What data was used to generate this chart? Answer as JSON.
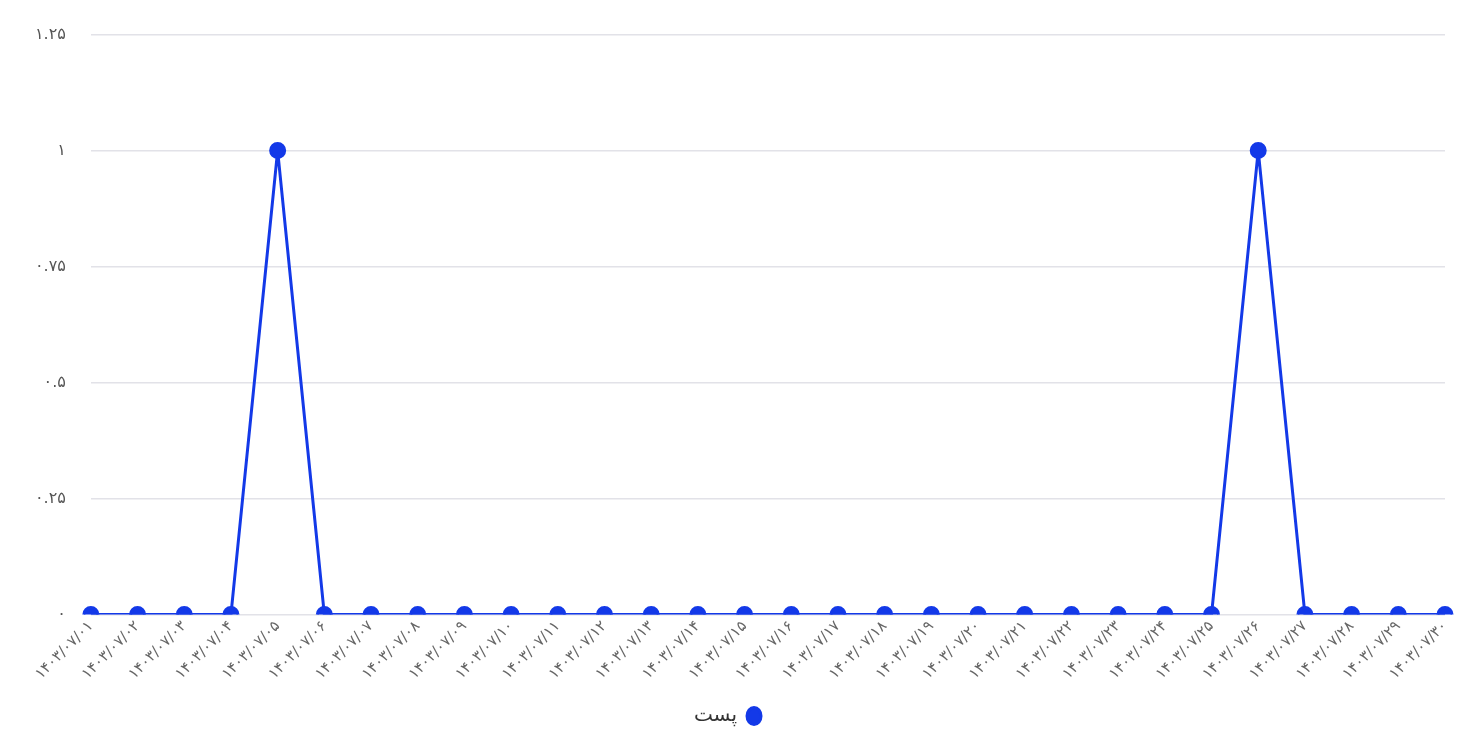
{
  "chart_data": {
    "type": "line",
    "categories": [
      "۱۴۰۳/۰۷/۰۱",
      "۱۴۰۳/۰۷/۰۲",
      "۱۴۰۳/۰۷/۰۳",
      "۱۴۰۳/۰۷/۰۴",
      "۱۴۰۳/۰۷/۰۵",
      "۱۴۰۳/۰۷/۰۶",
      "۱۴۰۳/۰۷/۰۷",
      "۱۴۰۳/۰۷/۰۸",
      "۱۴۰۳/۰۷/۰۹",
      "۱۴۰۳/۰۷/۱۰",
      "۱۴۰۳/۰۷/۱۱",
      "۱۴۰۳/۰۷/۱۲",
      "۱۴۰۳/۰۷/۱۳",
      "۱۴۰۳/۰۷/۱۴",
      "۱۴۰۳/۰۷/۱۵",
      "۱۴۰۳/۰۷/۱۶",
      "۱۴۰۳/۰۷/۱۷",
      "۱۴۰۳/۰۷/۱۸",
      "۱۴۰۳/۰۷/۱۹",
      "۱۴۰۳/۰۷/۲۰",
      "۱۴۰۳/۰۷/۲۱",
      "۱۴۰۳/۰۷/۲۲",
      "۱۴۰۳/۰۷/۲۳",
      "۱۴۰۳/۰۷/۲۴",
      "۱۴۰۳/۰۷/۲۵",
      "۱۴۰۳/۰۷/۲۶",
      "۱۴۰۳/۰۷/۲۷",
      "۱۴۰۳/۰۷/۲۸",
      "۱۴۰۳/۰۷/۲۹",
      "۱۴۰۳/۰۷/۳۰"
    ],
    "series": [
      {
        "name": "پست",
        "color": "#1339e8",
        "values": [
          0,
          0,
          0,
          0,
          1,
          0,
          0,
          0,
          0,
          0,
          0,
          0,
          0,
          0,
          0,
          0,
          0,
          0,
          0,
          0,
          0,
          0,
          0,
          0,
          0,
          1,
          0,
          0,
          0,
          0
        ]
      }
    ],
    "ylim": [
      0,
      1.25
    ],
    "yticks": [
      {
        "value": 0,
        "label": "۰"
      },
      {
        "value": 0.25,
        "label": "۰.۲۵"
      },
      {
        "value": 0.5,
        "label": "۰.۵"
      },
      {
        "value": 0.75,
        "label": "۰.۷۵"
      },
      {
        "value": 1,
        "label": "۱"
      },
      {
        "value": 1.25,
        "label": "۱.۲۵"
      }
    ],
    "grid": "y",
    "legend": "bottom",
    "marker": "circle",
    "line_style": "solid"
  }
}
